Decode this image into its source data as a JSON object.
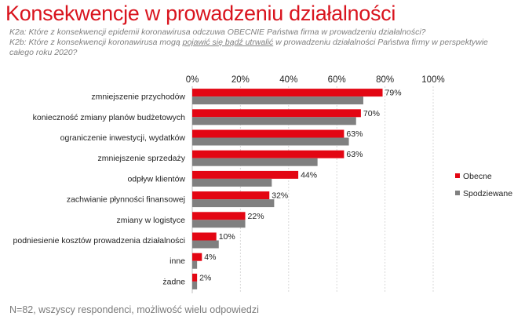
{
  "header": {
    "title": "Konsekwencje w prowadzeniu działalności",
    "q1": "K2a: Które z konsekwencji epidemii koronawirusa odczuwa OBECNIE Państwa firma w prowadzeniu działalności?",
    "q2_pre": "K2b: Które z konsekwencji koronawirusa mogą ",
    "q2_under": "pojawić się bądź utrwalić",
    "q2_post": " w prowadzeniu działalności Państwa firmy w perspektywie",
    "q2_line2": "całego roku 2020?"
  },
  "footer": "N=82, wszyscy respondenci, możliwość wielu odpowiedzi",
  "colors": {
    "obecne": "#e30613",
    "spodziewane": "#808080"
  },
  "chart_data": {
    "type": "bar",
    "orientation": "horizontal",
    "categories": [
      "zmniejszenie przychodów",
      "konieczność zmiany planów budżetowych",
      "ograniczenie inwestycji, wydatków",
      "zmniejszenie sprzedaży",
      "odpływ klientów",
      "zachwianie płynności finansowej",
      "zmiany w logistyce",
      "podniesienie kosztów prowadzenia działalności",
      "inne",
      "żadne"
    ],
    "series": [
      {
        "name": "Obecne",
        "values": [
          79,
          70,
          63,
          63,
          44,
          32,
          22,
          10,
          4,
          2
        ]
      },
      {
        "name": "Spodziewane",
        "values": [
          71,
          68,
          65,
          52,
          33,
          34,
          22,
          11,
          2,
          2
        ]
      }
    ],
    "data_labels": [
      "79%",
      "70%",
      "63%",
      "63%",
      "44%",
      "32%",
      "22%",
      "10%",
      "4%",
      "2%"
    ],
    "xlim": [
      0,
      100
    ],
    "xticks": [
      0,
      20,
      40,
      60,
      80,
      100
    ],
    "xtick_labels": [
      "0%",
      "20%",
      "40%",
      "60%",
      "80%",
      "100%"
    ],
    "legend_position": "right",
    "grid": true
  }
}
